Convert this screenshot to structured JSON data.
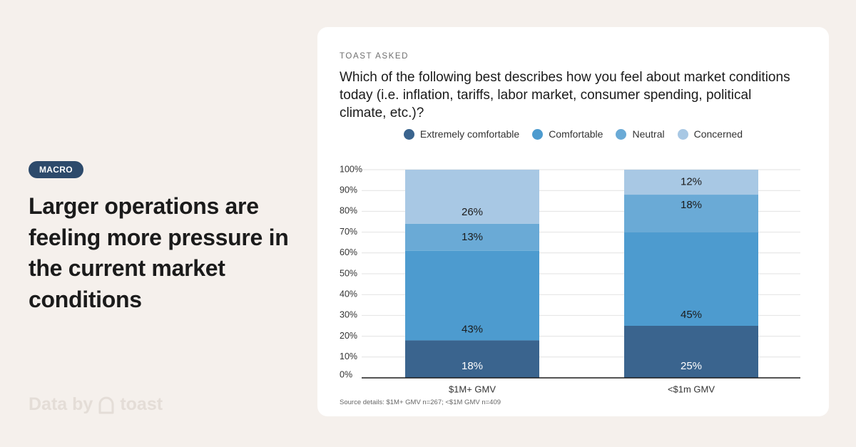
{
  "left": {
    "tag": "MACRO",
    "headline": "Larger operations are feeling more pressure in the current market conditions",
    "brand_text": "Data by",
    "brand_name": "toast"
  },
  "card": {
    "eyebrow": "TOAST ASKED",
    "question": "Which of the following best describes how you feel about market conditions today (i.e. inflation, tariffs, labor market, consumer spending, political climate, etc.)?",
    "source": "Source details: $1M+ GMV n=267; <$1M GMV n=409"
  },
  "colors": {
    "extremely_comfortable": "#3a648e",
    "comfortable": "#4d9bcf",
    "neutral": "#6aaad6",
    "concerned": "#a8c8e4"
  },
  "chart_data": {
    "type": "bar",
    "stacked": true,
    "categories": [
      "$1M+ GMV",
      "<$1m GMV"
    ],
    "series": [
      {
        "name": "Extremely comfortable",
        "color": "#3a648e",
        "values": [
          18,
          25
        ]
      },
      {
        "name": "Comfortable",
        "color": "#4d9bcf",
        "values": [
          43,
          45
        ]
      },
      {
        "name": "Neutral",
        "color": "#6aaad6",
        "values": [
          13,
          18
        ]
      },
      {
        "name": "Concerned",
        "color": "#a8c8e4",
        "values": [
          26,
          12
        ]
      }
    ],
    "ylim": [
      0,
      100
    ],
    "yticks": [
      "0%",
      "10%",
      "20%",
      "30%",
      "40%",
      "50%",
      "60%",
      "70%",
      "80%",
      "90%",
      "100%"
    ],
    "grid": true,
    "legend_position": "top"
  }
}
